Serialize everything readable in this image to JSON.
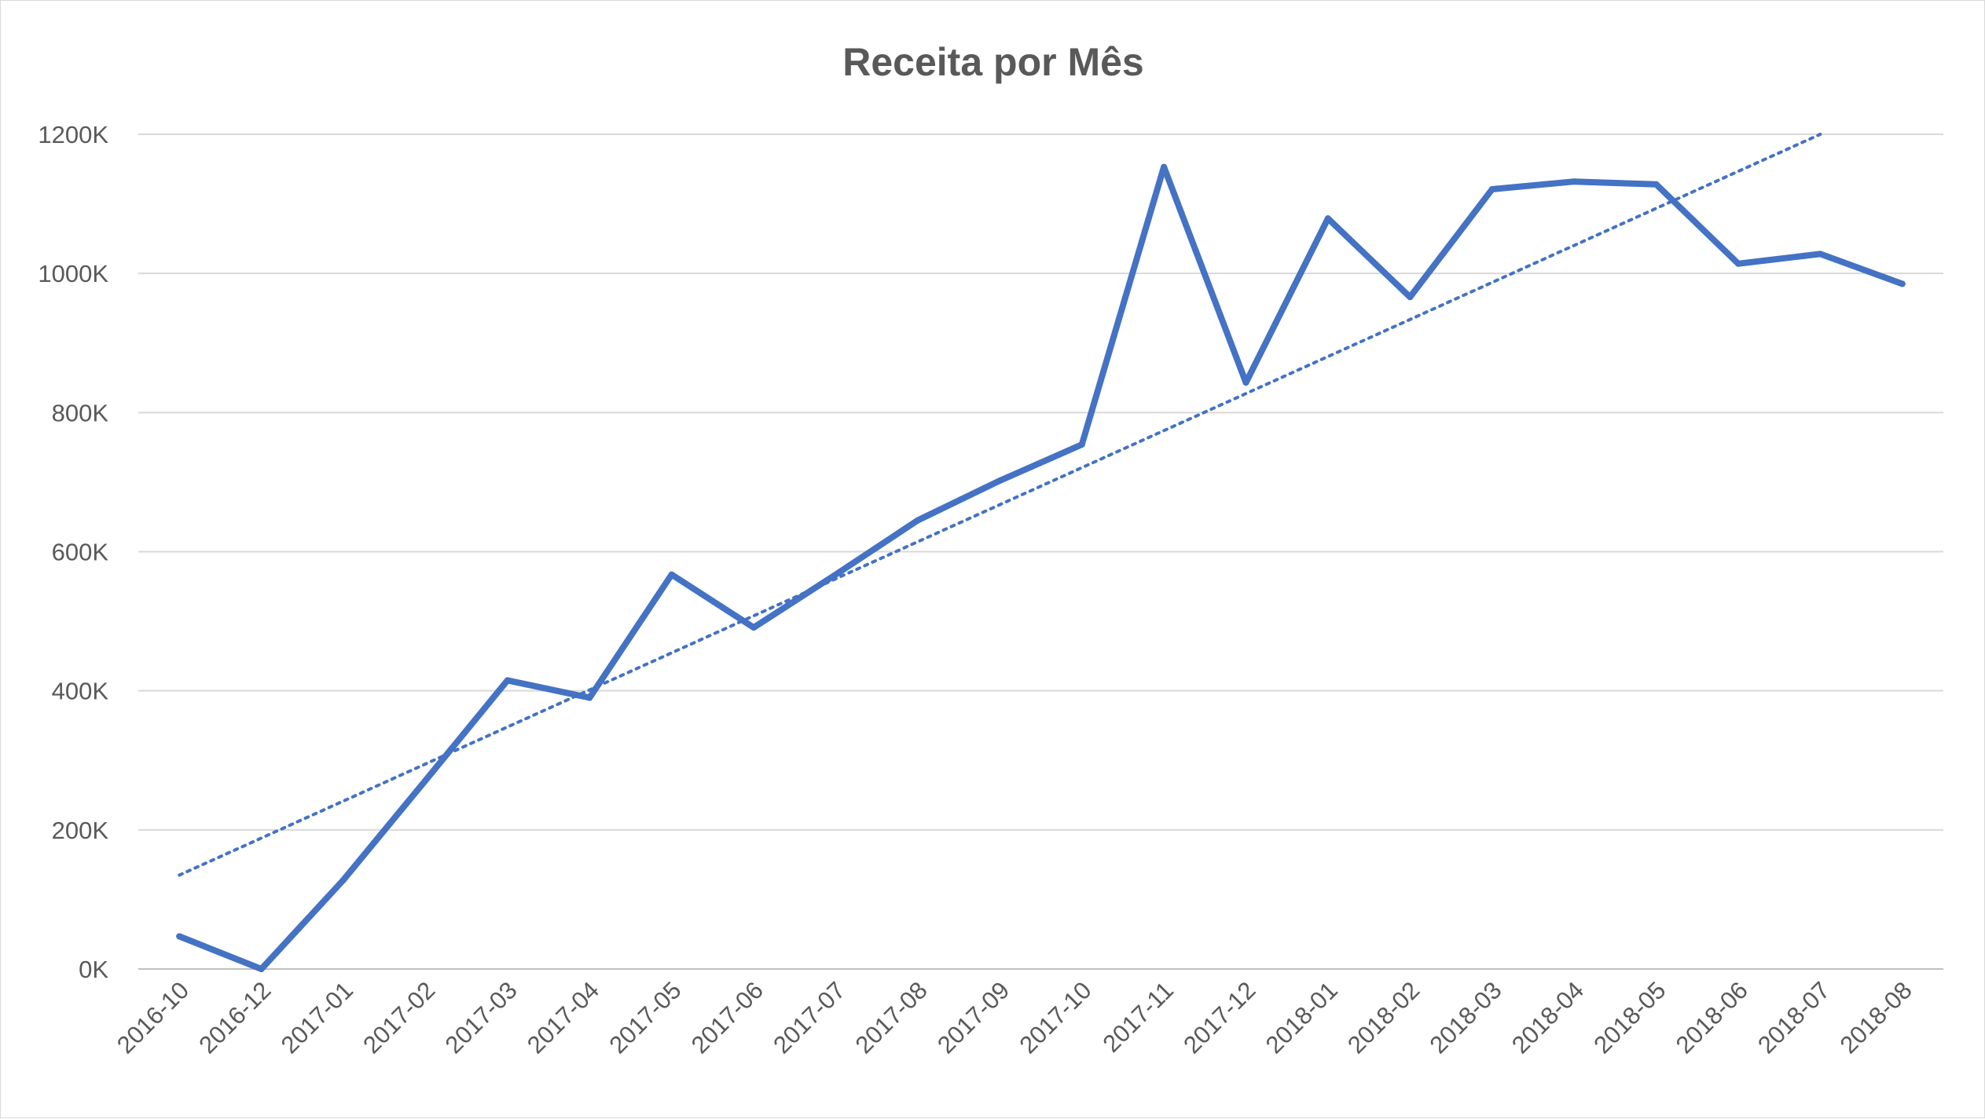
{
  "chart_data": {
    "type": "line",
    "title": "Receita por Mês",
    "xlabel": "",
    "ylabel": "",
    "categories": [
      "2016-10",
      "2016-12",
      "2017-01",
      "2017-02",
      "2017-03",
      "2017-04",
      "2017-05",
      "2017-06",
      "2017-07",
      "2017-08",
      "2017-09",
      "2017-10",
      "2017-11",
      "2017-12",
      "2018-01",
      "2018-02",
      "2018-03",
      "2018-04",
      "2018-05",
      "2018-06",
      "2018-07",
      "2018-08"
    ],
    "series": [
      {
        "values": [
          47000,
          0,
          128000,
          271000,
          415000,
          390000,
          567000,
          491000,
          567000,
          645000,
          702000,
          754000,
          1153000,
          843000,
          1079000,
          966000,
          1121000,
          1132000,
          1128000,
          1014000,
          1028000,
          985000
        ],
        "color": "#4472c4"
      }
    ],
    "trendline": {
      "type": "linear",
      "style": "dotted",
      "color": "#4472c4",
      "start": 135000,
      "end": 1200000,
      "end_category_index": 20
    },
    "ylim": [
      0,
      1200000
    ],
    "y_ticks": [
      0,
      200000,
      400000,
      600000,
      800000,
      1000000,
      1200000
    ],
    "y_tick_labels": [
      "0K",
      "200K",
      "400K",
      "600K",
      "800K",
      "1000K",
      "1200K"
    ],
    "grid": true,
    "legend": "none"
  }
}
